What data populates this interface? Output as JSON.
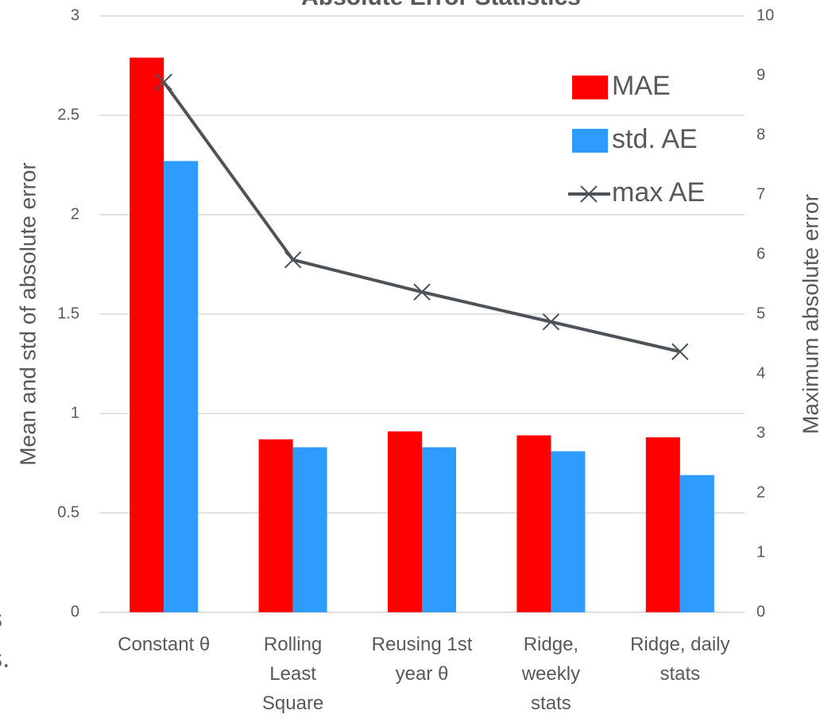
{
  "chart_data": {
    "type": "bar",
    "title": "Absolute Error Statistics",
    "categories": [
      "Constant θ",
      "Rolling\nLeast\nSquare",
      "Reusing 1st\nyear θ",
      "Ridge,\nweekly\nstats",
      "Ridge, daily\nstats"
    ],
    "series": [
      {
        "name": "MAE",
        "color": "#ff0000",
        "type": "bar",
        "values": [
          2.79,
          0.87,
          0.91,
          0.89,
          0.88
        ]
      },
      {
        "name": "std. AE",
        "color": "#2e9bff",
        "type": "bar",
        "values": [
          2.27,
          0.83,
          0.83,
          0.81,
          0.69
        ]
      },
      {
        "name": "max AE",
        "color": "#4d5358",
        "type": "line",
        "axis": "y2",
        "values": [
          8.89,
          5.91,
          5.37,
          4.87,
          4.37
        ]
      }
    ],
    "ylabel": "Mean and std of absolute error",
    "y2label": "Maximum absolute error",
    "ylim": [
      0,
      3
    ],
    "yticks": [
      0,
      0.5,
      1,
      1.5,
      2,
      2.5,
      3
    ],
    "y2lim": [
      0,
      10
    ],
    "y2ticks": [
      0,
      1,
      2,
      3,
      4,
      5,
      6,
      7,
      8,
      9,
      10
    ],
    "grid": true,
    "legend": "upper right",
    "annotations": [
      "s",
      "s."
    ]
  }
}
